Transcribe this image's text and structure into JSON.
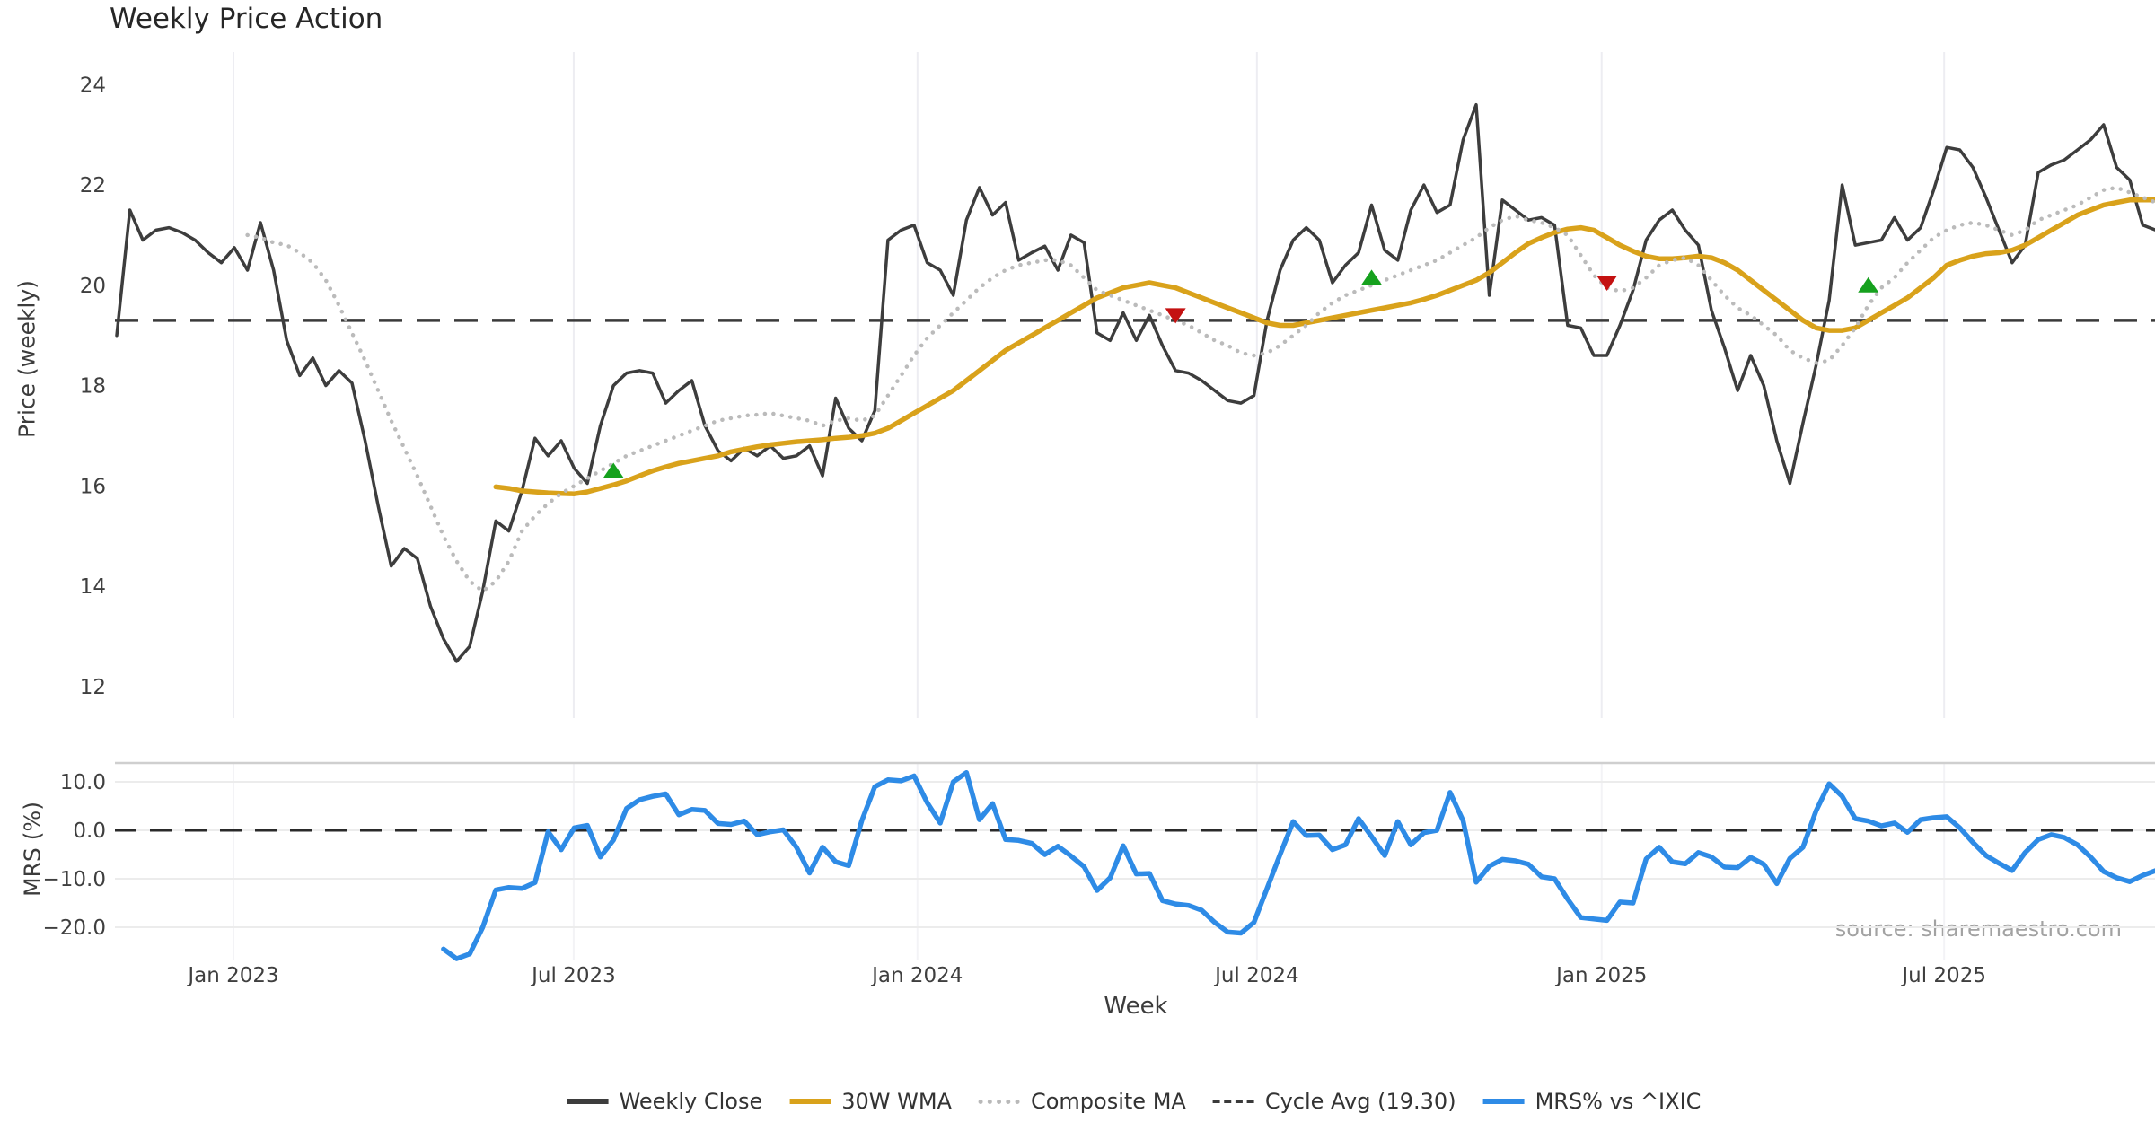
{
  "chart_data": {
    "type": "line",
    "title": "Weekly Price Action",
    "source": "source: sharemaestro.com",
    "x_axis": {
      "label": "Week",
      "weeks_total": 156,
      "ticks": [
        {
          "week": 8.93,
          "label": "Jan 2023"
        },
        {
          "week": 34.96,
          "label": "Jul 2023"
        },
        {
          "week": 61.26,
          "label": "Jan 2024"
        },
        {
          "week": 87.23,
          "label": "Jul 2024"
        },
        {
          "week": 113.6,
          "label": "Jan 2025"
        },
        {
          "week": 139.8,
          "label": "Jul 2025"
        }
      ]
    },
    "panels": [
      {
        "id": "price",
        "ylabel": "Price (weekly)",
        "ylim": [
          11.37,
          24.65
        ],
        "yticks": [
          {
            "v": 24,
            "label": "24"
          },
          {
            "v": 22,
            "label": "22"
          },
          {
            "v": 20,
            "label": "20"
          },
          {
            "v": 18,
            "label": "18"
          },
          {
            "v": 16,
            "label": "16"
          },
          {
            "v": 14,
            "label": "14"
          },
          {
            "v": 12,
            "label": "12"
          }
        ],
        "ref_line": {
          "value": 19.3,
          "name": "Cycle Avg (19.30)"
        }
      },
      {
        "id": "mrs",
        "ylabel": "MRS (%)",
        "ylim": [
          -26.85,
          13.89
        ],
        "yticks": [
          {
            "v": 10,
            "label": "10.0"
          },
          {
            "v": 0,
            "label": "0.0"
          },
          {
            "v": -10,
            "label": "−10.0"
          },
          {
            "v": -20,
            "label": "−20.0"
          }
        ],
        "ref_line": {
          "value": 0,
          "name": "zero line"
        }
      }
    ],
    "series": [
      {
        "name": "Weekly Close",
        "panel": "price",
        "color": "#3d3d3d",
        "width": 3.5,
        "style": "solid",
        "start_week": 0,
        "values": [
          19.0,
          21.5,
          20.9,
          21.1,
          21.15,
          21.05,
          20.9,
          20.65,
          20.45,
          20.75,
          20.3,
          21.25,
          20.3,
          18.9,
          18.2,
          18.55,
          18.0,
          18.3,
          18.05,
          16.9,
          15.6,
          14.4,
          14.75,
          14.55,
          13.6,
          12.95,
          12.5,
          12.8,
          13.9,
          15.3,
          15.1,
          15.9,
          16.95,
          16.6,
          16.9,
          16.35,
          16.05,
          17.2,
          18.0,
          18.25,
          18.3,
          18.25,
          17.65,
          17.9,
          18.1,
          17.2,
          16.7,
          16.5,
          16.75,
          16.6,
          16.8,
          16.55,
          16.6,
          16.8,
          16.2,
          17.75,
          17.15,
          16.9,
          17.5,
          20.9,
          21.1,
          21.2,
          20.45,
          20.3,
          19.8,
          21.3,
          21.95,
          21.4,
          21.65,
          20.5,
          20.65,
          20.78,
          20.3,
          21.0,
          20.85,
          19.05,
          18.9,
          19.45,
          18.9,
          19.4,
          18.8,
          18.3,
          18.25,
          18.1,
          17.9,
          17.7,
          17.65,
          17.8,
          19.3,
          20.3,
          20.9,
          21.15,
          20.9,
          20.05,
          20.4,
          20.65,
          21.6,
          20.7,
          20.5,
          21.5,
          22.0,
          21.45,
          21.6,
          22.9,
          23.6,
          19.8,
          21.7,
          21.5,
          21.3,
          21.35,
          21.2,
          19.2,
          19.15,
          18.6,
          18.6,
          19.2,
          19.9,
          20.9,
          21.3,
          21.5,
          21.1,
          20.8,
          19.5,
          18.75,
          17.9,
          18.6,
          18.0,
          16.9,
          16.05,
          17.25,
          18.4,
          19.7,
          22.0,
          20.8,
          20.85,
          20.9,
          21.35,
          20.9,
          21.15,
          21.9,
          22.75,
          22.7,
          22.35,
          21.75,
          21.1,
          20.45,
          20.8,
          22.25,
          22.4,
          22.5,
          22.7,
          22.9,
          23.2,
          22.35,
          22.1,
          21.2,
          21.1
        ]
      },
      {
        "name": "30W WMA",
        "panel": "price",
        "color": "#d9a21b",
        "width": 5.5,
        "style": "solid",
        "start_week": 29,
        "values": [
          15.98,
          15.95,
          15.9,
          15.88,
          15.86,
          15.85,
          15.84,
          15.88,
          15.95,
          16.02,
          16.1,
          16.2,
          16.3,
          16.38,
          16.45,
          16.5,
          16.55,
          16.6,
          16.68,
          16.73,
          16.78,
          16.82,
          16.85,
          16.88,
          16.9,
          16.92,
          16.95,
          16.97,
          17.0,
          17.05,
          17.15,
          17.3,
          17.45,
          17.6,
          17.75,
          17.9,
          18.1,
          18.3,
          18.5,
          18.7,
          18.85,
          19.0,
          19.15,
          19.3,
          19.45,
          19.6,
          19.75,
          19.85,
          19.95,
          20.0,
          20.05,
          20.0,
          19.95,
          19.85,
          19.75,
          19.65,
          19.55,
          19.45,
          19.35,
          19.25,
          19.2,
          19.2,
          19.25,
          19.3,
          19.35,
          19.4,
          19.45,
          19.5,
          19.55,
          19.6,
          19.65,
          19.72,
          19.8,
          19.9,
          20.0,
          20.1,
          20.25,
          20.45,
          20.65,
          20.83,
          20.95,
          21.05,
          21.12,
          21.15,
          21.1,
          20.95,
          20.8,
          20.68,
          20.58,
          20.53,
          20.53,
          20.55,
          20.58,
          20.55,
          20.45,
          20.3,
          20.1,
          19.9,
          19.7,
          19.5,
          19.3,
          19.15,
          19.1,
          19.1,
          19.15,
          19.3,
          19.45,
          19.6,
          19.75,
          19.95,
          20.15,
          20.4,
          20.5,
          20.58,
          20.63,
          20.65,
          20.7,
          20.8,
          20.95,
          21.1,
          21.25,
          21.4,
          21.5,
          21.6,
          21.65,
          21.7,
          21.7,
          21.7
        ]
      },
      {
        "name": "Composite MA",
        "panel": "price",
        "color": "#bbbbbb",
        "width": 4.5,
        "style": "dotted",
        "start_week": 10,
        "values": [
          21.0,
          20.95,
          20.85,
          20.8,
          20.65,
          20.45,
          20.1,
          19.6,
          19.05,
          18.5,
          17.9,
          17.3,
          16.75,
          16.2,
          15.6,
          15.0,
          14.5,
          14.1,
          13.9,
          14.1,
          14.5,
          15.1,
          15.4,
          15.65,
          15.85,
          16.0,
          16.15,
          16.3,
          16.45,
          16.6,
          16.7,
          16.8,
          16.9,
          17.0,
          17.1,
          17.2,
          17.3,
          17.35,
          17.4,
          17.42,
          17.45,
          17.4,
          17.35,
          17.3,
          17.2,
          17.3,
          17.35,
          17.3,
          17.4,
          17.8,
          18.2,
          18.6,
          18.95,
          19.2,
          19.45,
          19.7,
          19.95,
          20.15,
          20.3,
          20.4,
          20.45,
          20.5,
          20.5,
          20.4,
          20.15,
          19.9,
          19.8,
          19.7,
          19.6,
          19.5,
          19.4,
          19.3,
          19.2,
          19.05,
          18.9,
          18.8,
          18.65,
          18.6,
          18.65,
          18.8,
          19.0,
          19.2,
          19.45,
          19.65,
          19.8,
          19.9,
          20.0,
          20.1,
          20.2,
          20.3,
          20.4,
          20.5,
          20.65,
          20.8,
          20.95,
          21.15,
          21.3,
          21.38,
          21.3,
          21.25,
          21.15,
          21.0,
          20.6,
          20.2,
          19.95,
          19.88,
          19.95,
          20.15,
          20.4,
          20.5,
          20.55,
          20.4,
          20.1,
          19.8,
          19.55,
          19.4,
          19.2,
          19.0,
          18.7,
          18.55,
          18.45,
          18.5,
          18.8,
          19.15,
          19.6,
          19.95,
          20.15,
          20.45,
          20.7,
          20.95,
          21.1,
          21.2,
          21.25,
          21.2,
          21.1,
          21.0,
          21.1,
          21.3,
          21.4,
          21.5,
          21.6,
          21.75,
          21.9,
          21.95,
          21.85,
          21.75,
          21.65
        ]
      },
      {
        "name": "MRS% vs ^IXIC",
        "panel": "mrs",
        "color": "#2e8be6",
        "width": 5.5,
        "style": "solid",
        "start_week": 25,
        "values": [
          -24.5,
          -26.5,
          -25.5,
          -20.0,
          -12.3,
          -11.8,
          -12.0,
          -10.8,
          -0.3,
          -4.0,
          0.5,
          1.0,
          -5.5,
          -2.0,
          4.5,
          6.3,
          7.0,
          7.5,
          3.2,
          4.3,
          4.1,
          1.4,
          1.2,
          1.9,
          -0.9,
          -0.3,
          0.1,
          -3.5,
          -8.8,
          -3.5,
          -6.5,
          -7.3,
          2.0,
          9.0,
          10.4,
          10.2,
          11.2,
          5.7,
          1.5,
          10.0,
          11.9,
          2.2,
          5.5,
          -1.9,
          -2.1,
          -2.7,
          -5.0,
          -3.3,
          -5.3,
          -7.5,
          -12.4,
          -9.8,
          -3.2,
          -9.0,
          -8.9,
          -14.5,
          -15.2,
          -15.5,
          -16.5,
          -19.0,
          -21.0,
          -21.2,
          -19.0,
          -12.0,
          -5.0,
          1.8,
          -1.1,
          -1.0,
          -4.0,
          -3.0,
          2.4,
          -1.3,
          -5.2,
          1.8,
          -3.0,
          -0.5,
          0.0,
          7.8,
          2.0,
          -10.7,
          -7.4,
          -6.0,
          -6.3,
          -7.0,
          -9.6,
          -10.0,
          -14.2,
          -18.0,
          -18.3,
          -18.6,
          -14.8,
          -15.0,
          -5.9,
          -3.5,
          -6.5,
          -6.9,
          -4.6,
          -5.5,
          -7.6,
          -7.7,
          -5.6,
          -7.0,
          -11.0,
          -5.8,
          -3.5,
          4.0,
          9.6,
          7.0,
          2.4,
          1.9,
          0.9,
          1.5,
          -0.4,
          2.2,
          2.6,
          2.8,
          0.5,
          -2.5,
          -5.2,
          -6.8,
          -8.3,
          -4.6,
          -1.9,
          -0.9,
          -1.5,
          -3.0,
          -5.5,
          -8.5,
          -9.8,
          -10.6,
          -9.3,
          -8.3
        ]
      }
    ],
    "markers": {
      "buy": {
        "color": "#16a11e",
        "points": [
          {
            "week": 38,
            "value": 16.3
          },
          {
            "week": 96,
            "value": 20.15
          },
          {
            "week": 134,
            "value": 20.0
          }
        ]
      },
      "sell": {
        "color": "#c41111",
        "points": [
          {
            "week": 81,
            "value": 19.4
          },
          {
            "week": 114,
            "value": 20.05
          }
        ]
      }
    },
    "legend": [
      {
        "label": "Weekly Close",
        "swatch": "solid-dark"
      },
      {
        "label": "30W WMA",
        "swatch": "solid-gold"
      },
      {
        "label": "Composite MA",
        "swatch": "dotted-gray"
      },
      {
        "label": "Cycle Avg (19.30)",
        "swatch": "dashed-dark"
      },
      {
        "label": "MRS% vs ^IXIC",
        "swatch": "solid-blue"
      }
    ],
    "colors": {
      "close": "#3d3d3d",
      "wma": "#d9a21b",
      "composite": "#bbbbbb",
      "cycle_avg": "#3a3a3a",
      "mrs": "#2e8be6",
      "buy": "#16a11e",
      "sell": "#c41111",
      "grid": "#ededf2",
      "grid_h": "#ececec",
      "spine": "#cfcfcf",
      "source_text": "#a2a2a2"
    }
  }
}
